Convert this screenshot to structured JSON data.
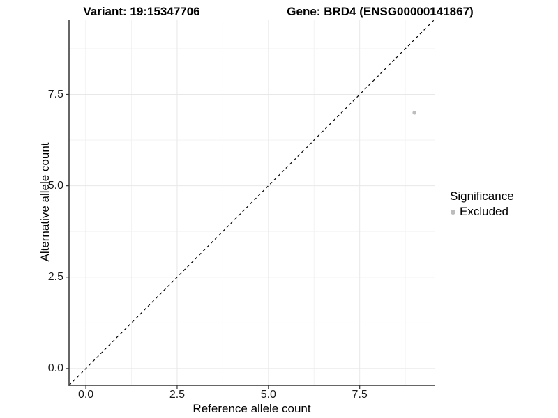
{
  "titles": {
    "variant": "Variant: 19:15347706",
    "gene": "Gene: BRD4 (ENSG00000141867)"
  },
  "chart_data": {
    "type": "scatter",
    "xlabel": "Reference allele count",
    "ylabel": "Alternative allele count",
    "xlim": [
      -0.46,
      9.55
    ],
    "ylim": [
      -0.46,
      9.55
    ],
    "x_ticks": [
      0,
      2.5,
      5,
      7.5
    ],
    "x_tick_labels": [
      "0.0",
      "2.5",
      "5.0",
      "7.5"
    ],
    "x_minor_ticks": [
      1.25,
      3.75,
      6.25,
      8.75
    ],
    "y_ticks": [
      0,
      2.5,
      5,
      7.5
    ],
    "y_tick_labels": [
      "0.0",
      "2.5",
      "5.0",
      "7.5"
    ],
    "y_minor_ticks": [
      1.25,
      3.75,
      6.25,
      8.75
    ],
    "grid": "major+minor",
    "series": [
      {
        "name": "Excluded",
        "color": "#bdbdbd",
        "marker": "circle",
        "points": [
          {
            "x": 9,
            "y": 7
          }
        ]
      }
    ],
    "reference_line": {
      "slope": 1,
      "intercept": 0,
      "style": "dashed",
      "color": "#000000"
    },
    "legend": {
      "title": "Significance",
      "position": "right",
      "entries": [
        {
          "label": "Excluded",
          "color": "#bdbdbd",
          "marker": "circle"
        }
      ]
    }
  },
  "colors": {
    "background": "#ffffff",
    "grid_major": "#e8e8e8",
    "grid_minor": "#f2f2f2",
    "axis": "#333333",
    "tick_text": "#1a1a1a",
    "title_text": "#000000"
  }
}
